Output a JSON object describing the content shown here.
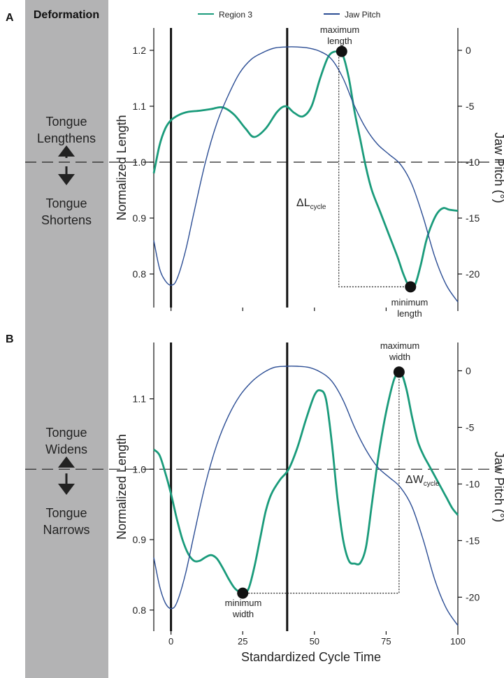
{
  "sidebar": {
    "title": "Deformation"
  },
  "legend": [
    {
      "name": "Region 3",
      "color": "#1a9b7b"
    },
    {
      "name": "Jaw Pitch",
      "color": "#2b4d94"
    }
  ],
  "colors": {
    "region": "#1a9b7b",
    "jaw": "#2b4d94",
    "sidebar": "#b3b3b4",
    "axis": "#111111"
  },
  "xaxis": {
    "label": "Standardized Cycle Time",
    "ticks": [
      "0",
      "25",
      "50",
      "75",
      "100"
    ],
    "tick_values": [
      0,
      25,
      50,
      75,
      100
    ],
    "range": [
      -6,
      100
    ]
  },
  "chart_data": [
    {
      "type": "line",
      "panel_label": "A",
      "ylabel": "Normalized Length",
      "y2label": "Jaw Pitch (°)",
      "ylim": [
        0.74,
        1.24
      ],
      "y2lim": [
        -23,
        2
      ],
      "yticks": [
        0.8,
        0.9,
        1.0,
        1.1,
        1.2
      ],
      "yticklabels": [
        "0.8",
        "0.9",
        "1.0",
        "1.1",
        "1.2"
      ],
      "y2ticks": [
        0,
        -5,
        -10,
        -15,
        -20
      ],
      "y2ticklabels": [
        "0",
        "-5",
        "-10",
        "-15",
        "-20"
      ],
      "reference_line_y": 1.0,
      "vertical_lines_x": [
        0,
        40.5
      ],
      "deformation_up": "Tongue Lengthens",
      "deformation_down": "Tongue Shortens",
      "series": [
        {
          "name": "Region 3",
          "axis": "left",
          "x": [
            -6,
            -4,
            -2,
            0,
            3,
            6,
            10,
            14,
            18,
            22,
            26,
            29,
            33,
            37,
            40,
            43,
            46,
            49,
            52,
            55,
            58,
            60,
            62,
            64,
            66,
            68,
            70,
            73,
            76,
            79,
            81,
            83,
            85,
            87,
            89,
            91,
            93,
            95,
            97,
            100
          ],
          "y": [
            0.98,
            1.03,
            1.06,
            1.075,
            1.085,
            1.09,
            1.092,
            1.095,
            1.098,
            1.085,
            1.06,
            1.045,
            1.06,
            1.09,
            1.1,
            1.088,
            1.082,
            1.1,
            1.15,
            1.19,
            1.198,
            1.19,
            1.15,
            1.09,
            1.04,
            0.99,
            0.95,
            0.91,
            0.87,
            0.83,
            0.8,
            0.778,
            0.78,
            0.815,
            0.86,
            0.89,
            0.91,
            0.918,
            0.915,
            0.913
          ]
        },
        {
          "name": "Jaw Pitch",
          "axis": "right",
          "x": [
            -6,
            -4,
            -2,
            0,
            2,
            5,
            8,
            12,
            16,
            20,
            24,
            28,
            32,
            36,
            40,
            44,
            48,
            52,
            56,
            60,
            64,
            68,
            72,
            76,
            80,
            84,
            88,
            92,
            96,
            100
          ],
          "y": [
            -17,
            -19.5,
            -20.6,
            -21,
            -20.5,
            -18,
            -14.5,
            -10,
            -6.5,
            -4,
            -2,
            -0.8,
            -0.2,
            0.2,
            0.3,
            0.3,
            0.2,
            -0.1,
            -0.8,
            -2.5,
            -5,
            -7,
            -8.4,
            -9.3,
            -10.2,
            -12,
            -15,
            -18.5,
            -21,
            -22.5
          ]
        }
      ],
      "annotations": {
        "max_label": [
          "maximum",
          "length"
        ],
        "max_point": [
          59.5,
          1.198
        ],
        "min_label": [
          "minimum",
          "length"
        ],
        "min_point": [
          83.5,
          0.777
        ],
        "delta_symbol": "ΔL",
        "delta_sub": "cycle",
        "delta_x": 58.5
      }
    },
    {
      "type": "line",
      "panel_label": "B",
      "ylabel": "Normalized Length",
      "y2label": "Jaw Pitch (°)",
      "ylim": [
        0.77,
        1.18
      ],
      "y2lim": [
        -23,
        2.5
      ],
      "yticks": [
        0.8,
        0.9,
        1.0,
        1.1
      ],
      "yticklabels": [
        "0.8",
        "0.9",
        "1.0",
        "1.1"
      ],
      "y2ticks": [
        0,
        -5,
        -10,
        -15,
        -20
      ],
      "y2ticklabels": [
        "0",
        "-5",
        "-10",
        "-15",
        "-20"
      ],
      "reference_line_y": 1.0,
      "vertical_lines_x": [
        0,
        40.5
      ],
      "deformation_up": "Tongue Widens",
      "deformation_down": "Tongue Narrows",
      "series": [
        {
          "name": "Region 3",
          "axis": "left",
          "x": [
            -6,
            -4,
            -2,
            0,
            2,
            4,
            6,
            8,
            10,
            12,
            14,
            16,
            18,
            20,
            22,
            24,
            25,
            27,
            29,
            31,
            33,
            35,
            38,
            41,
            44,
            47,
            50,
            52,
            54,
            56,
            58,
            60,
            62,
            64,
            66,
            68,
            70,
            72,
            74,
            76,
            78,
            80,
            82,
            84,
            86,
            88,
            90,
            92,
            94,
            96,
            98,
            100
          ],
          "y": [
            1.028,
            1.02,
            0.995,
            0.965,
            0.93,
            0.9,
            0.88,
            0.87,
            0.87,
            0.875,
            0.878,
            0.873,
            0.86,
            0.845,
            0.832,
            0.825,
            0.824,
            0.83,
            0.86,
            0.9,
            0.94,
            0.965,
            0.985,
            1.0,
            1.03,
            1.07,
            1.105,
            1.112,
            1.1,
            1.04,
            0.96,
            0.9,
            0.87,
            0.866,
            0.867,
            0.89,
            0.95,
            1.01,
            1.06,
            1.1,
            1.13,
            1.138,
            1.115,
            1.075,
            1.04,
            1.02,
            1.005,
            0.99,
            0.975,
            0.96,
            0.945,
            0.935
          ]
        },
        {
          "name": "Jaw Pitch",
          "axis": "right",
          "x": [
            -6,
            -4,
            -2,
            0,
            2,
            5,
            8,
            12,
            16,
            20,
            24,
            28,
            32,
            36,
            40,
            44,
            48,
            52,
            56,
            60,
            64,
            68,
            72,
            76,
            80,
            84,
            88,
            92,
            96,
            100
          ],
          "y": [
            -16.5,
            -19,
            -20.5,
            -21,
            -20.5,
            -18,
            -14.5,
            -10,
            -6.5,
            -4,
            -2.2,
            -1,
            -0.2,
            0.3,
            0.4,
            0.4,
            0.3,
            -0.1,
            -0.9,
            -2.6,
            -5,
            -7,
            -8.5,
            -9.4,
            -10.3,
            -12,
            -15,
            -18.5,
            -21,
            -22.5
          ]
        }
      ],
      "annotations": {
        "max_label": [
          "maximum",
          "width"
        ],
        "max_point": [
          79.5,
          1.138
        ],
        "min_label": [
          "minimum",
          "width"
        ],
        "min_point": [
          25,
          0.824
        ],
        "delta_symbol": "ΔW",
        "delta_sub": "cycle",
        "delta_x": 79.5
      }
    }
  ]
}
